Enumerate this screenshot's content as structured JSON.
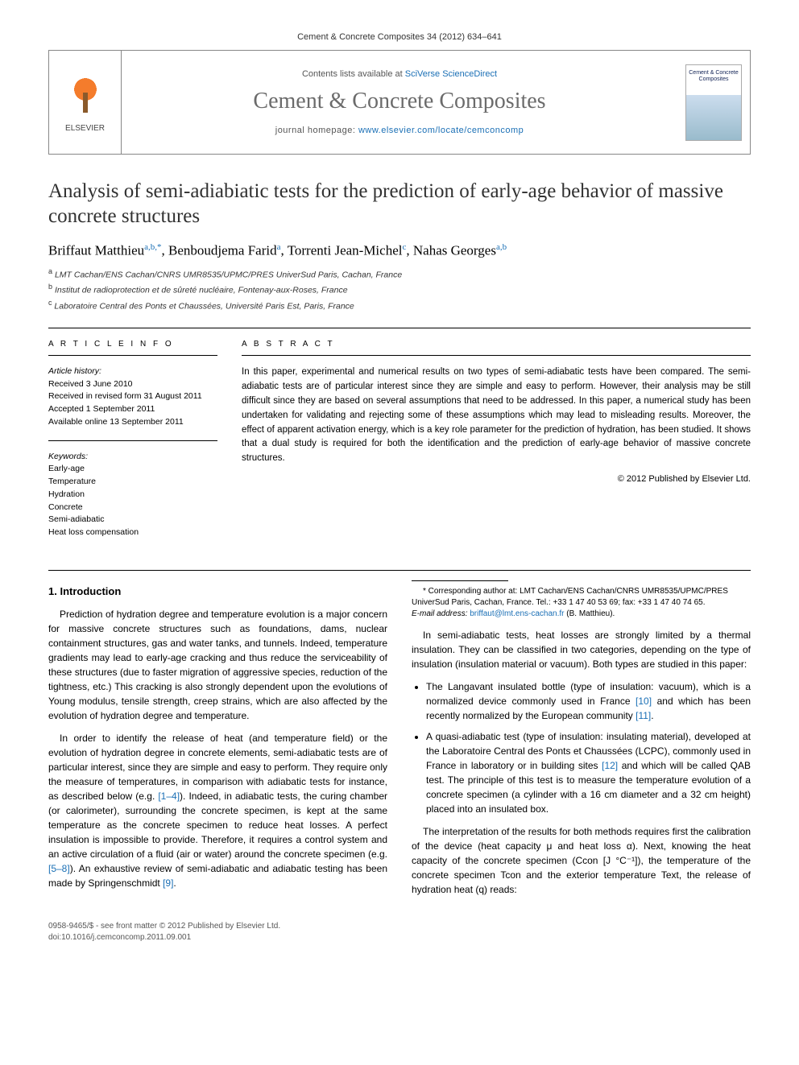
{
  "meta": {
    "citation": "Cement & Concrete Composites 34 (2012) 634–641",
    "contents_prefix": "Contents lists available at ",
    "contents_link": "SciVerse ScienceDirect",
    "journal_name": "Cement & Concrete Composites",
    "homepage_prefix": "journal homepage: ",
    "homepage_url": "www.elsevier.com/locate/cemconcomp",
    "publisher": "ELSEVIER",
    "cover_text": "Cement & Concrete Composites"
  },
  "paper": {
    "title": "Analysis of semi-adiabiatic tests for the prediction of early-age behavior of massive concrete structures",
    "authors_html": "Briffaut Matthieu",
    "author1": "Briffaut Matthieu",
    "author1_sup": "a,b,*",
    "author2": "Benboudjema Farid",
    "author2_sup": "a",
    "author3": "Torrenti Jean-Michel",
    "author3_sup": "c",
    "author4": "Nahas Georges",
    "author4_sup": "a,b",
    "aff_a": "LMT Cachan/ENS Cachan/CNRS UMR8535/UPMC/PRES UniverSud Paris, Cachan, France",
    "aff_b": "Institut de radioprotection et de sûreté nucléaire, Fontenay-aux-Roses, France",
    "aff_c": "Laboratoire Central des Ponts et Chaussées, Université Paris Est, Paris, France"
  },
  "info": {
    "label_article_info": "A R T I C L E   I N F O",
    "label_abstract": "A B S T R A C T",
    "history_label": "Article history:",
    "received": "Received 3 June 2010",
    "revised": "Received in revised form 31 August 2011",
    "accepted": "Accepted 1 September 2011",
    "online": "Available online 13 September 2011",
    "keywords_label": "Keywords:",
    "kw1": "Early-age",
    "kw2": "Temperature",
    "kw3": "Hydration",
    "kw4": "Concrete",
    "kw5": "Semi-adiabatic",
    "kw6": "Heat loss compensation"
  },
  "abstract": {
    "text": "In this paper, experimental and numerical results on two types of semi-adiabatic tests have been compared. The semi-adiabatic tests are of particular interest since they are simple and easy to perform. However, their analysis may be still difficult since they are based on several assumptions that need to be addressed. In this paper, a numerical study has been undertaken for validating and rejecting some of these assumptions which may lead to misleading results. Moreover, the effect of apparent activation energy, which is a key role parameter for the prediction of hydration, has been studied. It shows that a dual study is required for both the identification and the prediction of early-age behavior of massive concrete structures.",
    "copyright": "© 2012 Published by Elsevier Ltd."
  },
  "body": {
    "h_intro": "1. Introduction",
    "p1": "Prediction of hydration degree and temperature evolution is a major concern for massive concrete structures such as foundations, dams, nuclear containment structures, gas and water tanks, and tunnels. Indeed, temperature gradients may lead to early-age cracking and thus reduce the serviceability of these structures (due to faster migration of aggressive species, reduction of the tightness, etc.) This cracking is also strongly dependent upon the evolutions of Young modulus, tensile strength, creep strains, which are also affected by the evolution of hydration degree and temperature.",
    "p2a": "In order to identify the release of heat (and temperature field) or the evolution of hydration degree in concrete elements, semi-adiabatic tests are of particular interest, since they are simple and easy to perform. They require only the measure of temperatures, in comparison with adiabatic tests for instance, as described below (e.g. ",
    "p2_ref": "[1–4]",
    "p2b": "). Indeed, in adiabatic tests, the curing chamber (or calorimeter), surrounding the concrete specimen, is kept at the same temperature as the concrete specimen to reduce heat losses. A perfect insulation is impossible to provide. Therefore, it ",
    "p2c": "requires a control system and an active circulation of a fluid (air or water) around the concrete specimen (e.g. ",
    "p2_ref2": "[5–8]",
    "p2d": "). An exhaustive review of semi-adiabatic and adiabatic testing has been made by Springenschmidt ",
    "p2_ref3": "[9]",
    "p2e": ".",
    "p3": "In semi-adiabatic tests, heat losses are strongly limited by a thermal insulation. They can be classified in two categories, depending on the type of insulation (insulation material or vacuum). Both types are studied in this paper:",
    "li1a": "The Langavant insulated bottle (type of insulation: vacuum), which is a normalized device commonly used in France ",
    "li1_ref1": "[10]",
    "li1b": " and which has been recently normalized by the European community ",
    "li1_ref2": "[11]",
    "li1c": ".",
    "li2a": "A quasi-adiabatic test (type of insulation: insulating material), developed at the Laboratoire Central des Ponts et Chaussées (LCPC), commonly used in France in laboratory or in building sites ",
    "li2_ref": "[12]",
    "li2b": " and which will be called QAB test. The principle of this test is to measure the temperature evolution of a concrete specimen (a cylinder with a 16 cm diameter and a 32 cm height) placed into an insulated box.",
    "p4": "The interpretation of the results for both methods requires first the calibration of the device (heat capacity μ and heat loss α). Next, knowing the heat capacity of the concrete specimen (Ccon [J °C⁻¹]), the temperature of the concrete specimen Tcon and the exterior temperature Text, the release of hydration heat (q) reads:"
  },
  "footnote": {
    "star": "* Corresponding author at: LMT Cachan/ENS Cachan/CNRS UMR8535/UPMC/PRES UniverSud Paris, Cachan, France. Tel.: +33 1 47 40 53 69; fax: +33 1 47 40 74 65.",
    "email_label": "E-mail address: ",
    "email": "briffaut@lmt.ens-cachan.fr",
    "email_suffix": " (B. Matthieu)."
  },
  "bottom": {
    "line1": "0958-9465/$ - see front matter © 2012 Published by Elsevier Ltd.",
    "line2": "doi:10.1016/j.cemconcomp.2011.09.001"
  },
  "colors": {
    "link": "#1a6fb5",
    "accent": "#f47c2c",
    "text": "#000000",
    "muted": "#555555"
  }
}
